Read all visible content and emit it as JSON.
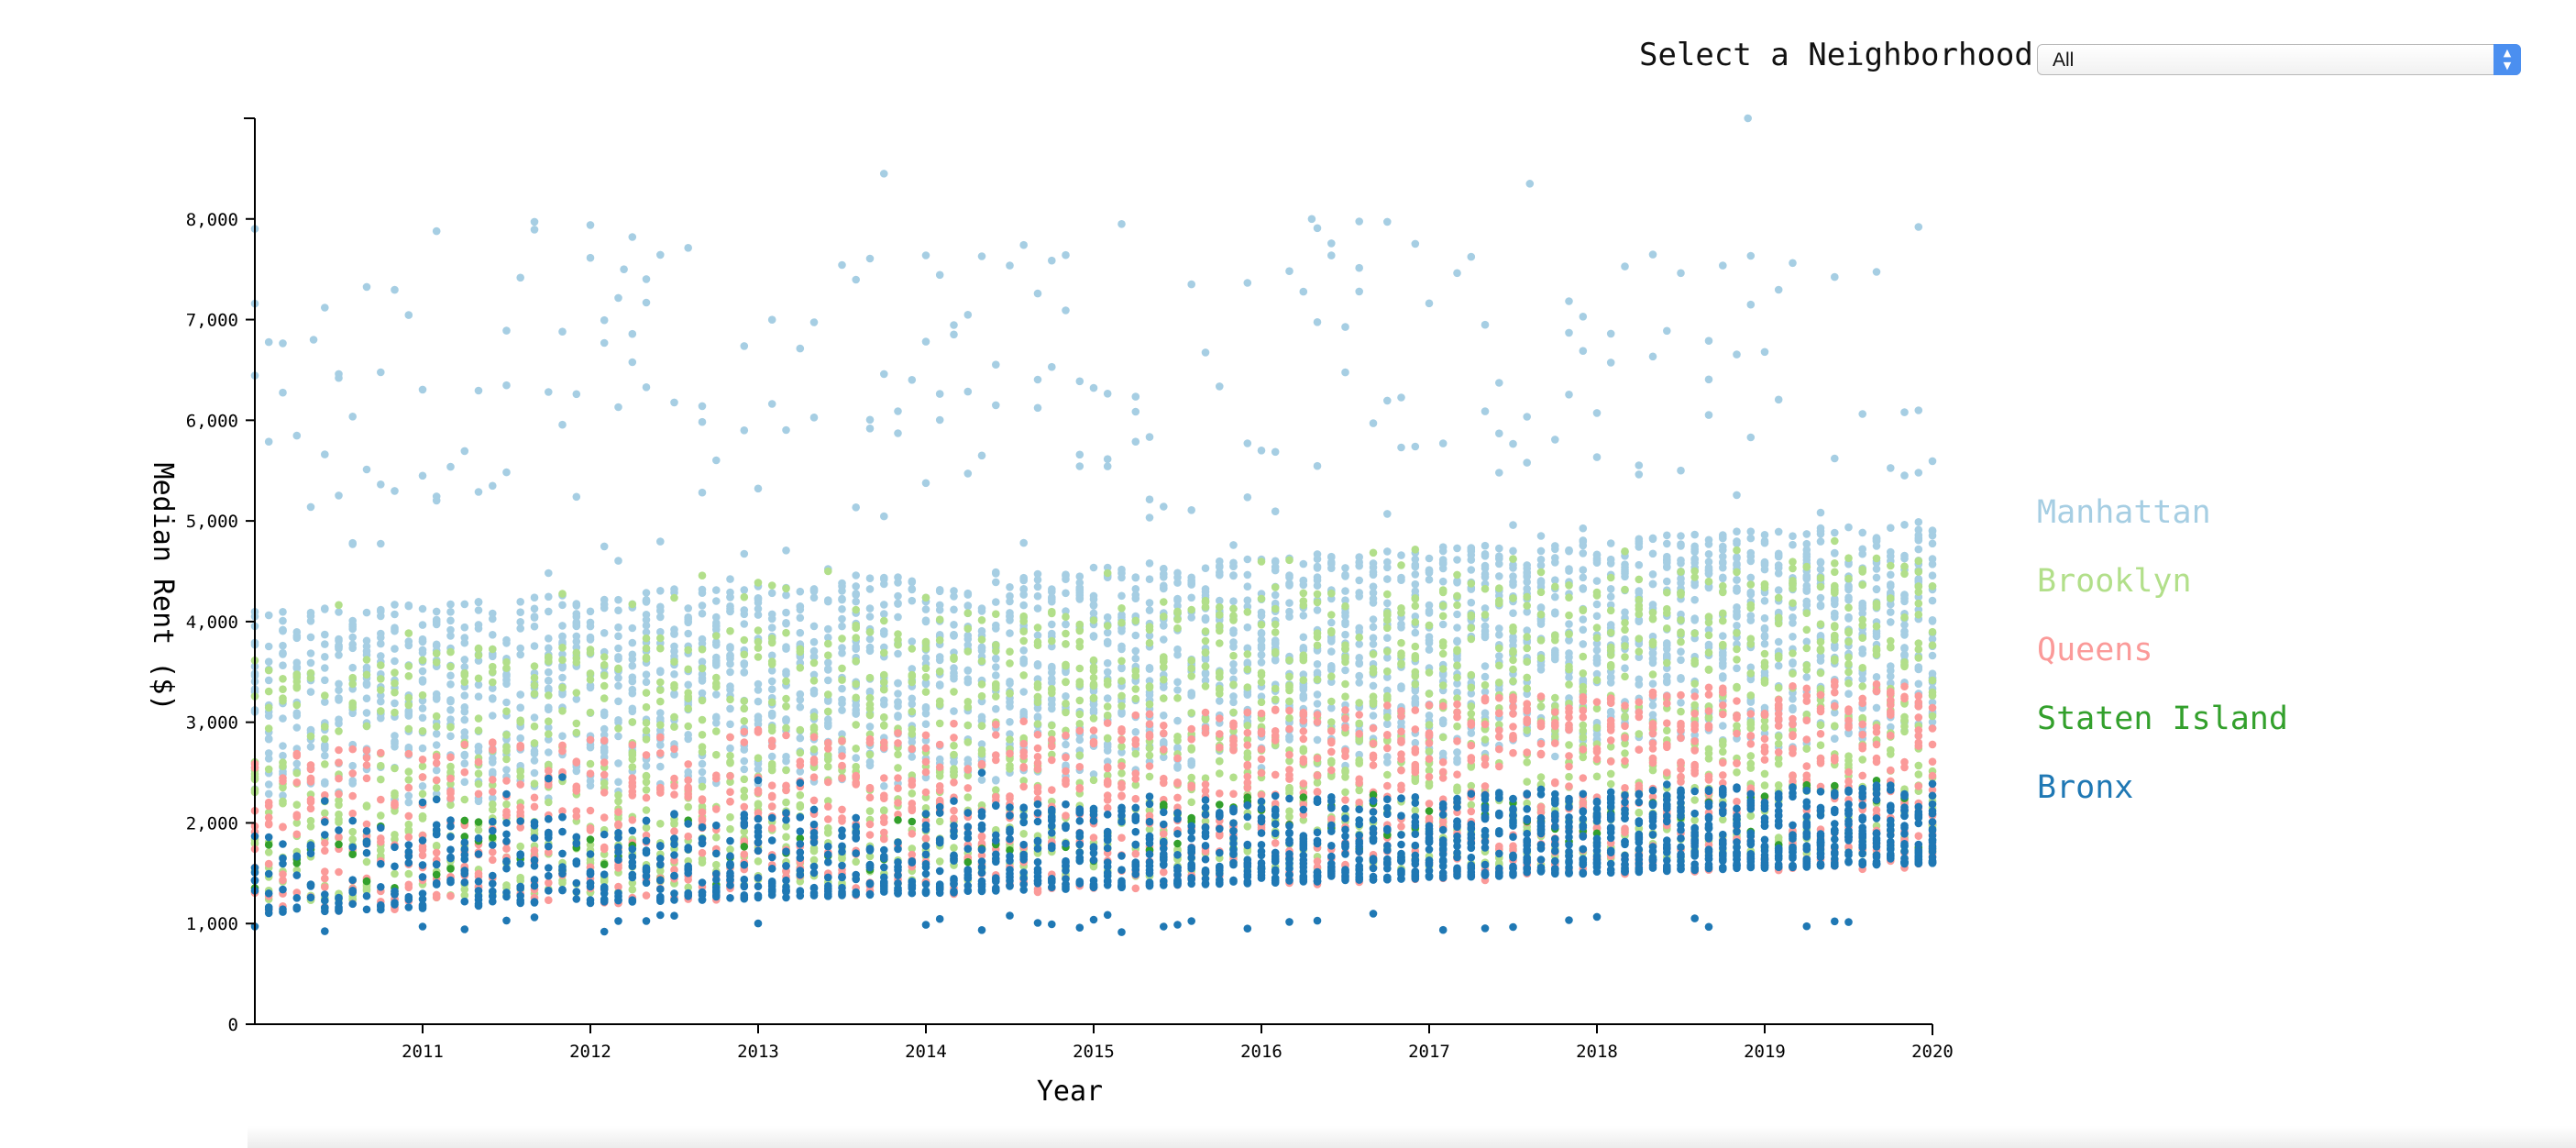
{
  "controls": {
    "select_label": "Select a Neighborhood",
    "selected_value": "All"
  },
  "chart_data": {
    "type": "scatter",
    "title": "",
    "xlabel": "Year",
    "ylabel": "Median Rent ($)",
    "xlim": [
      "2010-01",
      "2020-01"
    ],
    "ylim": [
      0,
      9000
    ],
    "x_ticks": [
      "2011",
      "2012",
      "2013",
      "2014",
      "2015",
      "2016",
      "2017",
      "2018",
      "2019",
      "2020"
    ],
    "y_ticks": [
      "0",
      "1,000",
      "2,000",
      "3,000",
      "4,000",
      "5,000",
      "6,000",
      "7,000",
      "8,000"
    ],
    "legend_position": "right",
    "grid": false,
    "series": [
      {
        "name": "Manhattan",
        "color": "#a6cee3"
      },
      {
        "name": "Brooklyn",
        "color": "#b2df8a"
      },
      {
        "name": "Queens",
        "color": "#fb9a99"
      },
      {
        "name": "Staten Island",
        "color": "#33a02c"
      },
      {
        "name": "Bronx",
        "color": "#1f78b4"
      }
    ]
  }
}
